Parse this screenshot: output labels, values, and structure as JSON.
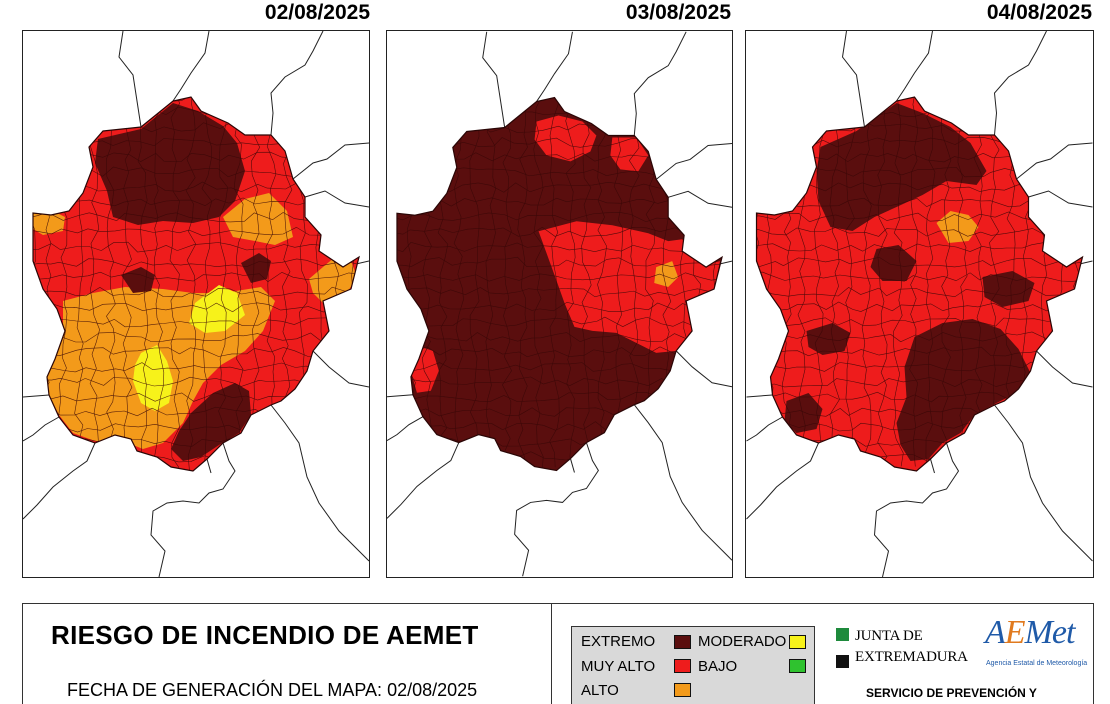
{
  "maps": [
    {
      "date": "02/08/2025",
      "dominant_level": "MUY ALTO",
      "levels_present": [
        "EXTREMO",
        "MUY ALTO",
        "ALTO",
        "MODERADO"
      ]
    },
    {
      "date": "03/08/2025",
      "dominant_level": "EXTREMO",
      "levels_present": [
        "EXTREMO",
        "MUY ALTO",
        "ALTO"
      ]
    },
    {
      "date": "04/08/2025",
      "dominant_level": "MUY ALTO",
      "levels_present": [
        "EXTREMO",
        "MUY ALTO",
        "ALTO"
      ]
    }
  ],
  "footer": {
    "title": "RIESGO DE INCENDIO DE AEMET",
    "generation_label": "FECHA DE GENERACIÓN DEL MAPA: 02/08/2025"
  },
  "legend": {
    "items": [
      {
        "label": "EXTREMO",
        "color": "#5a0e0e"
      },
      {
        "label": "MUY ALTO",
        "color": "#ee1c1c"
      },
      {
        "label": "ALTO",
        "color": "#f39a1a"
      },
      {
        "label": "MODERADO",
        "color": "#f7f21a"
      },
      {
        "label": "BAJO",
        "color": "#2fc22f"
      }
    ]
  },
  "junta": {
    "line1": "JUNTA DE",
    "line2": "EXTREMADURA",
    "green": "#1e8a3c",
    "black": "#111111"
  },
  "aemet": {
    "logo_a": "A",
    "logo_e": "E",
    "logo_rest": "Met",
    "subtitle": "Agencia Estatal de Meteorología",
    "color": "#1f5aa8",
    "accent": "#e07a1f"
  },
  "servicio": "SERVICIO DE PREVENCIÓN Y",
  "colors": {
    "extremo": "#5a0e0e",
    "muy_alto": "#ee1c1c",
    "alto": "#f39a1a",
    "moderado": "#f7f21a",
    "border": "#3a0808"
  }
}
